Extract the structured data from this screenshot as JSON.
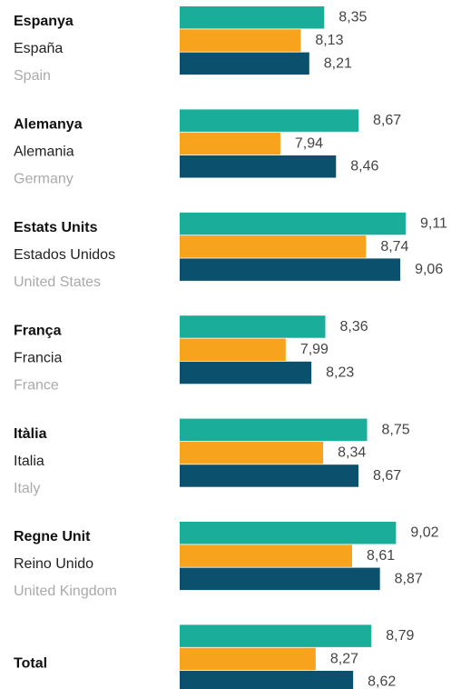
{
  "chart_data": {
    "type": "hbar_grouped",
    "categories": [
      [
        "Espanya",
        "España",
        "Spain"
      ],
      [
        "Alemanya",
        "Alemania",
        "Germany"
      ],
      [
        "Estats Units",
        "Estados Unidos",
        "United States"
      ],
      [
        "França",
        "Francia",
        "France"
      ],
      [
        "Itàlia",
        "Italia",
        "Italy"
      ],
      [
        "Regne Unit",
        "Reino Unido",
        "United Kingdom"
      ],
      [
        "Total"
      ]
    ],
    "series": [
      {
        "color": "#1aae9a",
        "values": [
          8.35,
          8.67,
          9.11,
          8.36,
          8.75,
          9.02,
          8.79
        ],
        "value_labels": [
          "8,35",
          "8,67",
          "9,11",
          "8,36",
          "8,75",
          "9,02",
          "8,79"
        ]
      },
      {
        "color": "#f8a31d",
        "values": [
          8.13,
          7.94,
          8.74,
          7.99,
          8.34,
          8.61,
          8.27
        ],
        "value_labels": [
          "8,13",
          "7,94",
          "8,74",
          "7,99",
          "8,34",
          "8,61",
          "8,27"
        ]
      },
      {
        "color": "#0b506d",
        "values": [
          8.21,
          8.46,
          9.06,
          8.23,
          8.67,
          8.87,
          8.62
        ],
        "value_labels": [
          "8,21",
          "8,46",
          "9,06",
          "8,23",
          "8,67",
          "8,87",
          "8,62"
        ]
      }
    ],
    "xlim": [
      7,
      9.5
    ]
  }
}
